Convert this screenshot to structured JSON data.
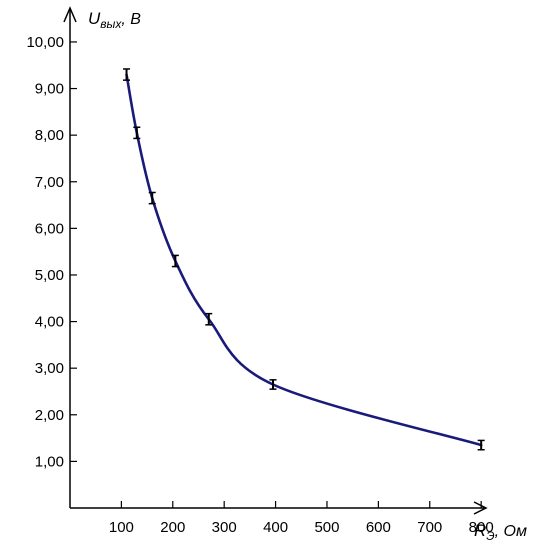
{
  "chart_data": {
    "type": "line",
    "x_label_main": "R",
    "x_label_sub": "Э",
    "x_label_unit": ", Ом",
    "y_label_main": "U",
    "y_label_sub": "вых",
    "y_label_unit": ", В",
    "x_ticks": [
      100,
      200,
      300,
      400,
      500,
      600,
      700,
      800
    ],
    "x_tick_labels": [
      "100",
      "200",
      "300",
      "400",
      "500",
      "600",
      "700",
      "800"
    ],
    "y_ticks": [
      1,
      2,
      3,
      4,
      5,
      6,
      7,
      8,
      9,
      10
    ],
    "y_tick_labels": [
      "1,00",
      "2,00",
      "3,00",
      "4,00",
      "5,00",
      "6,00",
      "7,00",
      "8,00",
      "9,00",
      "10,00"
    ],
    "xlim": [
      0,
      860
    ],
    "ylim": [
      0,
      10.9
    ],
    "grid": false,
    "series": [
      {
        "curve_color": "#1a1a7a",
        "x": [
          110,
          130,
          160,
          205,
          270,
          395,
          800
        ],
        "y": [
          9.3,
          8.05,
          6.65,
          5.3,
          4.05,
          2.65,
          1.35
        ],
        "y_error": [
          0.12,
          0.12,
          0.12,
          0.12,
          0.12,
          0.1,
          0.1
        ]
      }
    ]
  }
}
